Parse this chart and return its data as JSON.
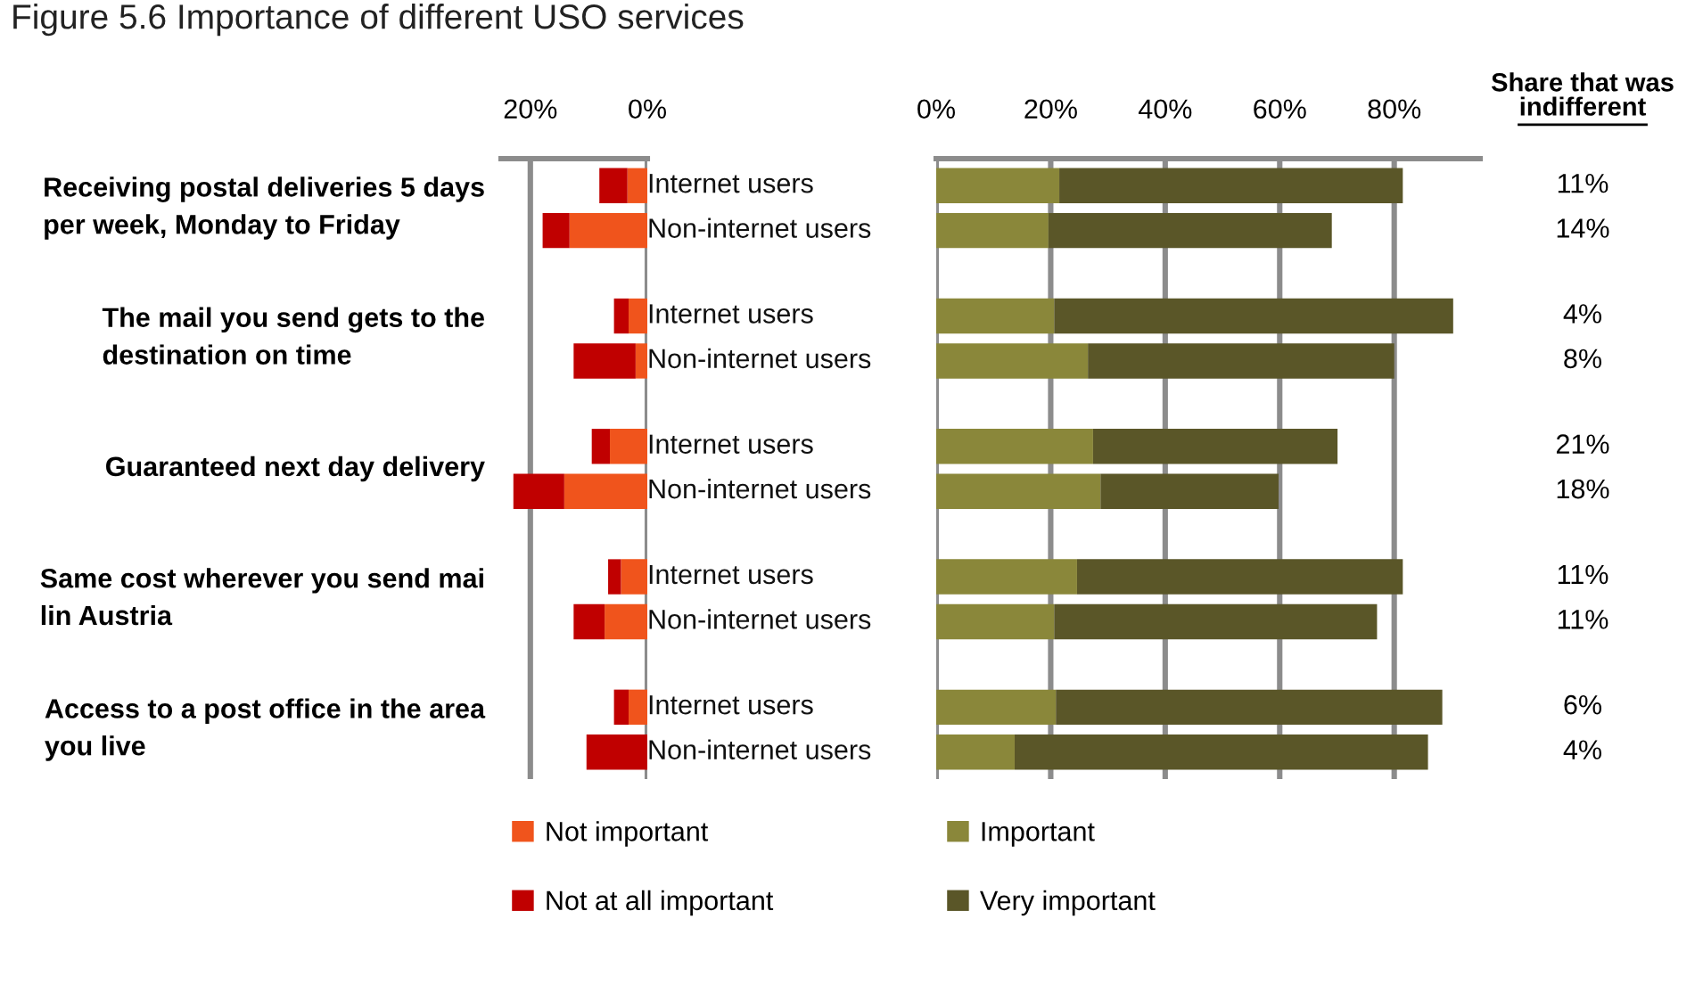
{
  "chart_data": [
    {
      "type": "bar",
      "orientation": "horizontal",
      "stacked": true,
      "title": "Figure 5.6 Importance of different USO services",
      "categories": [
        "Internet users",
        "Non-internet users",
        "Internet users",
        "Non-internet users",
        "Internet users",
        "Non-internet users",
        "Internet users",
        "Non-internet users",
        "Internet users",
        "Non-internet users"
      ],
      "series": [
        {
          "name": "Not important",
          "color": "#f0541c",
          "values": [
            3.4,
            13.3,
            3.2,
            2.0,
            6.4,
            14.2,
            4.5,
            7.3,
            3.2,
            0
          ]
        },
        {
          "name": "Not at all important",
          "color": "#c00000",
          "values": [
            4.8,
            4.6,
            2.5,
            10.6,
            3.1,
            8.7,
            2.2,
            5.3,
            2.5,
            10.4
          ]
        }
      ],
      "annotations": [
        "Receiving postal deliveries 5 days per week, Monday to Friday",
        "The mail you send gets to the destination on time",
        "Guaranteed next day delivery",
        "Same cost wherever you send mai lin Austria",
        "Access to a post office in the area you live"
      ],
      "xlim": [
        25,
        0
      ],
      "xticks": [
        {
          "value": 20,
          "label": "20%"
        },
        {
          "value": 0,
          "label": "0%"
        }
      ],
      "grid": "x",
      "legend": "bottom"
    },
    {
      "type": "bar",
      "orientation": "horizontal",
      "stacked": true,
      "categories": [
        null,
        null,
        null,
        null,
        null,
        null,
        null,
        null,
        null,
        null
      ],
      "series": [
        {
          "name": "Important",
          "color": "#8a873a",
          "values": [
            21.5,
            19.6,
            20.6,
            26.5,
            27.4,
            28.7,
            24.6,
            20.6,
            20.9,
            13.7
          ]
        },
        {
          "name": "Very important",
          "color": "#5a5628",
          "values": [
            60.0,
            49.5,
            69.7,
            53.5,
            42.7,
            31.1,
            56.9,
            56.4,
            67.5,
            72.2
          ]
        }
      ],
      "xlim": [
        0,
        95
      ],
      "xticks": [
        {
          "value": 0,
          "label": "0%"
        },
        {
          "value": 20,
          "label": "20%"
        },
        {
          "value": 40,
          "label": "40%"
        },
        {
          "value": 60,
          "label": "60%"
        },
        {
          "value": 80,
          "label": "80%"
        }
      ],
      "grid": "x",
      "legend": "bottom"
    },
    {
      "type": "other",
      "title": "Share that was indifferent",
      "categories": [
        null,
        null,
        null,
        null,
        null,
        null,
        null,
        null,
        null,
        null
      ],
      "value_labels": [
        "11%",
        "14%",
        "4%",
        "8%",
        "21%",
        "18%",
        "11%",
        "11%",
        "6%",
        "4%"
      ]
    }
  ]
}
